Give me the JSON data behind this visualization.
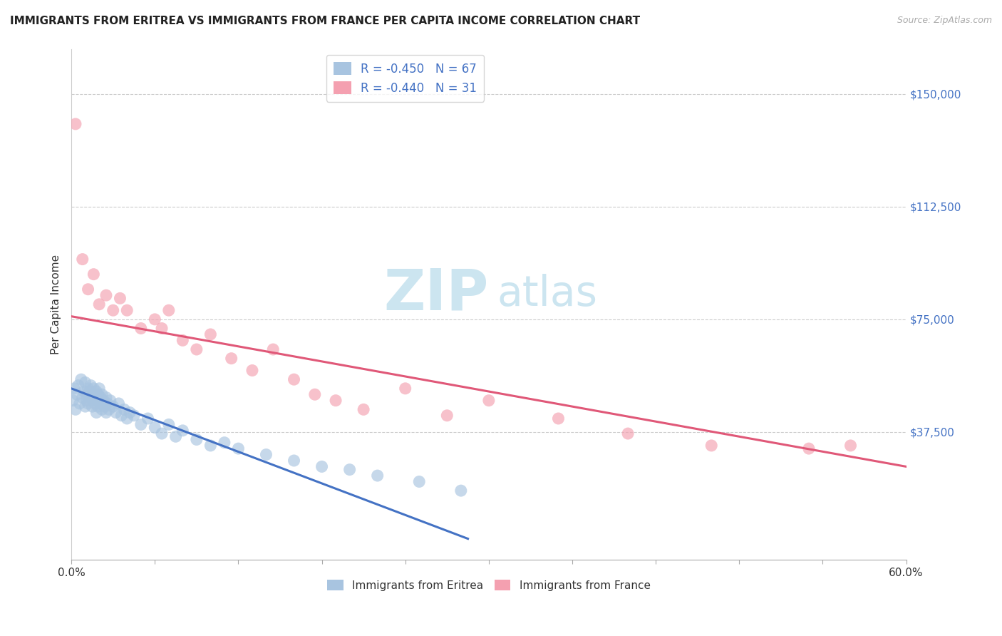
{
  "title": "IMMIGRANTS FROM ERITREA VS IMMIGRANTS FROM FRANCE PER CAPITA INCOME CORRELATION CHART",
  "source": "Source: ZipAtlas.com",
  "ylabel": "Per Capita Income",
  "yticks": [
    0,
    37500,
    75000,
    112500,
    150000
  ],
  "ytick_labels": [
    "",
    "$37,500",
    "$75,000",
    "$112,500",
    "$150,000"
  ],
  "xmin": 0.0,
  "xmax": 0.6,
  "ymin": -5000,
  "ymax": 165000,
  "legend_eritrea_r": "-0.450",
  "legend_eritrea_n": "67",
  "legend_france_r": "-0.440",
  "legend_france_n": "31",
  "eritrea_color": "#a8c4e0",
  "france_color": "#f4a0b0",
  "eritrea_line_color": "#4472c4",
  "france_line_color": "#e05878",
  "background_color": "#ffffff",
  "watermark_zip": "ZIP",
  "watermark_atlas": "atlas",
  "watermark_color": "#cce5f0",
  "title_fontsize": 11,
  "scatter_alpha": 0.65,
  "scatter_size": 150,
  "eritrea_x": [
    0.001,
    0.002,
    0.003,
    0.004,
    0.005,
    0.006,
    0.007,
    0.008,
    0.009,
    0.01,
    0.01,
    0.011,
    0.011,
    0.012,
    0.012,
    0.013,
    0.013,
    0.014,
    0.015,
    0.015,
    0.016,
    0.016,
    0.017,
    0.017,
    0.018,
    0.018,
    0.019,
    0.019,
    0.02,
    0.02,
    0.021,
    0.021,
    0.022,
    0.022,
    0.023,
    0.024,
    0.025,
    0.025,
    0.026,
    0.027,
    0.028,
    0.03,
    0.032,
    0.034,
    0.036,
    0.038,
    0.04,
    0.042,
    0.045,
    0.05,
    0.055,
    0.06,
    0.065,
    0.07,
    0.075,
    0.08,
    0.09,
    0.1,
    0.11,
    0.12,
    0.14,
    0.16,
    0.18,
    0.2,
    0.22,
    0.25,
    0.28
  ],
  "eritrea_y": [
    48000,
    52000,
    45000,
    50000,
    53000,
    47000,
    55000,
    49000,
    51000,
    46000,
    54000,
    48000,
    50000,
    52000,
    47000,
    49000,
    51000,
    53000,
    46000,
    50000,
    48000,
    52000,
    47000,
    49000,
    51000,
    44000,
    50000,
    46000,
    48000,
    52000,
    47000,
    49000,
    50000,
    45000,
    48000,
    46000,
    49000,
    44000,
    47000,
    45000,
    48000,
    46000,
    44000,
    47000,
    43000,
    45000,
    42000,
    44000,
    43000,
    40000,
    42000,
    39000,
    37000,
    40000,
    36000,
    38000,
    35000,
    33000,
    34000,
    32000,
    30000,
    28000,
    26000,
    25000,
    23000,
    21000,
    18000
  ],
  "france_x": [
    0.003,
    0.008,
    0.012,
    0.016,
    0.02,
    0.025,
    0.03,
    0.035,
    0.04,
    0.05,
    0.06,
    0.065,
    0.07,
    0.08,
    0.09,
    0.1,
    0.115,
    0.13,
    0.145,
    0.16,
    0.175,
    0.19,
    0.21,
    0.24,
    0.27,
    0.3,
    0.35,
    0.4,
    0.46,
    0.53,
    0.56
  ],
  "france_y": [
    140000,
    95000,
    85000,
    90000,
    80000,
    83000,
    78000,
    82000,
    78000,
    72000,
    75000,
    72000,
    78000,
    68000,
    65000,
    70000,
    62000,
    58000,
    65000,
    55000,
    50000,
    48000,
    45000,
    52000,
    43000,
    48000,
    42000,
    37000,
    33000,
    32000,
    33000
  ],
  "eritrea_trend_x": [
    0.0,
    0.285
  ],
  "eritrea_trend_y": [
    52000,
    2000
  ],
  "france_trend_x": [
    0.0,
    0.6
  ],
  "france_trend_y": [
    76000,
    26000
  ],
  "xtick_positions": [
    0.0,
    0.06,
    0.12,
    0.18,
    0.24,
    0.3,
    0.36,
    0.42,
    0.48,
    0.54,
    0.6
  ]
}
